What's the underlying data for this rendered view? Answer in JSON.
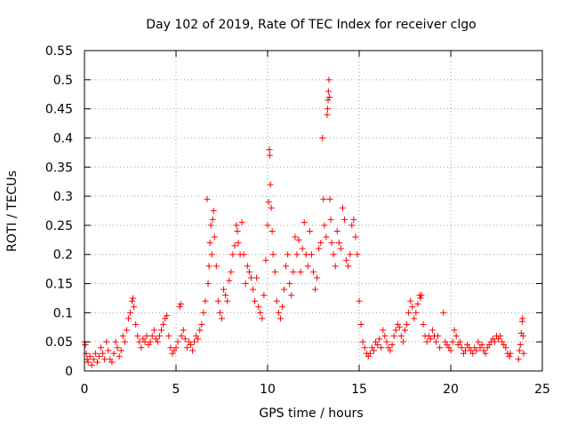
{
  "chart_data": {
    "type": "scatter",
    "title": "Day 102 of 2019, Rate Of TEC Index for receiver clgo",
    "xlabel": "GPS time / hours",
    "ylabel": "ROTI / TECUs",
    "xlim": [
      0,
      25
    ],
    "ylim": [
      0,
      0.55
    ],
    "x_ticks": [
      0,
      5,
      10,
      15,
      20,
      25
    ],
    "y_ticks": [
      0,
      0.05,
      0.1,
      0.15,
      0.2,
      0.25,
      0.3,
      0.35,
      0.4,
      0.45,
      0.5,
      0.55
    ],
    "x_tick_labels": [
      "0",
      "5",
      "10",
      "15",
      "20",
      "25"
    ],
    "y_tick_labels": [
      "0",
      "0.05",
      "0.1",
      "0.15",
      "0.2",
      "0.25",
      "0.3",
      "0.35",
      "0.4",
      "0.45",
      "0.5",
      "0.55"
    ],
    "grid": true,
    "marker": "+",
    "color": "#ff0000",
    "series": [
      {
        "name": "ROTI",
        "points": [
          [
            0.0,
            0.05
          ],
          [
            0.05,
            0.045
          ],
          [
            0.1,
            0.03
          ],
          [
            0.15,
            0.02
          ],
          [
            0.2,
            0.015
          ],
          [
            0.3,
            0.025
          ],
          [
            0.4,
            0.01
          ],
          [
            0.5,
            0.02
          ],
          [
            0.6,
            0.03
          ],
          [
            0.7,
            0.015
          ],
          [
            0.8,
            0.025
          ],
          [
            0.9,
            0.04
          ],
          [
            1.0,
            0.03
          ],
          [
            1.1,
            0.02
          ],
          [
            1.2,
            0.05
          ],
          [
            1.3,
            0.035
          ],
          [
            1.4,
            0.02
          ],
          [
            1.5,
            0.015
          ],
          [
            1.6,
            0.03
          ],
          [
            1.7,
            0.05
          ],
          [
            1.8,
            0.04
          ],
          [
            1.9,
            0.025
          ],
          [
            2.0,
            0.035
          ],
          [
            2.1,
            0.06
          ],
          [
            2.2,
            0.05
          ],
          [
            2.3,
            0.07
          ],
          [
            2.4,
            0.09
          ],
          [
            2.5,
            0.1
          ],
          [
            2.6,
            0.12
          ],
          [
            2.65,
            0.125
          ],
          [
            2.7,
            0.11
          ],
          [
            2.8,
            0.08
          ],
          [
            2.9,
            0.06
          ],
          [
            3.0,
            0.05
          ],
          [
            3.1,
            0.04
          ],
          [
            3.2,
            0.055
          ],
          [
            3.3,
            0.05
          ],
          [
            3.4,
            0.06
          ],
          [
            3.5,
            0.045
          ],
          [
            3.6,
            0.05
          ],
          [
            3.7,
            0.06
          ],
          [
            3.8,
            0.07
          ],
          [
            3.9,
            0.055
          ],
          [
            4.0,
            0.05
          ],
          [
            4.1,
            0.06
          ],
          [
            4.2,
            0.07
          ],
          [
            4.3,
            0.08
          ],
          [
            4.4,
            0.09
          ],
          [
            4.5,
            0.095
          ],
          [
            4.6,
            0.06
          ],
          [
            4.7,
            0.04
          ],
          [
            4.8,
            0.03
          ],
          [
            4.9,
            0.035
          ],
          [
            5.0,
            0.04
          ],
          [
            5.1,
            0.05
          ],
          [
            5.2,
            0.11
          ],
          [
            5.25,
            0.115
          ],
          [
            5.3,
            0.06
          ],
          [
            5.4,
            0.07
          ],
          [
            5.5,
            0.055
          ],
          [
            5.6,
            0.04
          ],
          [
            5.7,
            0.05
          ],
          [
            5.8,
            0.045
          ],
          [
            5.9,
            0.035
          ],
          [
            6.0,
            0.05
          ],
          [
            6.1,
            0.06
          ],
          [
            6.2,
            0.055
          ],
          [
            6.3,
            0.07
          ],
          [
            6.4,
            0.08
          ],
          [
            6.5,
            0.1
          ],
          [
            6.6,
            0.12
          ],
          [
            6.7,
            0.295
          ],
          [
            6.75,
            0.15
          ],
          [
            6.8,
            0.18
          ],
          [
            6.85,
            0.22
          ],
          [
            6.9,
            0.25
          ],
          [
            6.95,
            0.2
          ],
          [
            7.0,
            0.26
          ],
          [
            7.05,
            0.275
          ],
          [
            7.1,
            0.23
          ],
          [
            7.2,
            0.18
          ],
          [
            7.3,
            0.12
          ],
          [
            7.4,
            0.1
          ],
          [
            7.5,
            0.09
          ],
          [
            7.6,
            0.14
          ],
          [
            7.7,
            0.13
          ],
          [
            7.8,
            0.12
          ],
          [
            7.9,
            0.155
          ],
          [
            8.0,
            0.17
          ],
          [
            8.1,
            0.2
          ],
          [
            8.2,
            0.215
          ],
          [
            8.3,
            0.25
          ],
          [
            8.35,
            0.24
          ],
          [
            8.4,
            0.22
          ],
          [
            8.5,
            0.2
          ],
          [
            8.6,
            0.255
          ],
          [
            8.7,
            0.2
          ],
          [
            8.8,
            0.15
          ],
          [
            8.9,
            0.18
          ],
          [
            9.0,
            0.17
          ],
          [
            9.1,
            0.16
          ],
          [
            9.2,
            0.14
          ],
          [
            9.3,
            0.12
          ],
          [
            9.4,
            0.16
          ],
          [
            9.5,
            0.11
          ],
          [
            9.6,
            0.1
          ],
          [
            9.7,
            0.09
          ],
          [
            9.8,
            0.13
          ],
          [
            9.9,
            0.19
          ],
          [
            10.0,
            0.25
          ],
          [
            10.05,
            0.29
          ],
          [
            10.1,
            0.38
          ],
          [
            10.12,
            0.37
          ],
          [
            10.15,
            0.32
          ],
          [
            10.2,
            0.28
          ],
          [
            10.25,
            0.24
          ],
          [
            10.3,
            0.2
          ],
          [
            10.4,
            0.17
          ],
          [
            10.5,
            0.12
          ],
          [
            10.6,
            0.1
          ],
          [
            10.7,
            0.09
          ],
          [
            10.8,
            0.11
          ],
          [
            10.9,
            0.14
          ],
          [
            11.0,
            0.18
          ],
          [
            11.1,
            0.2
          ],
          [
            11.2,
            0.15
          ],
          [
            11.3,
            0.13
          ],
          [
            11.4,
            0.17
          ],
          [
            11.5,
            0.23
          ],
          [
            11.6,
            0.2
          ],
          [
            11.7,
            0.225
          ],
          [
            11.8,
            0.17
          ],
          [
            11.9,
            0.21
          ],
          [
            12.0,
            0.255
          ],
          [
            12.1,
            0.2
          ],
          [
            12.2,
            0.18
          ],
          [
            12.3,
            0.24
          ],
          [
            12.4,
            0.2
          ],
          [
            12.5,
            0.17
          ],
          [
            12.6,
            0.14
          ],
          [
            12.7,
            0.16
          ],
          [
            12.8,
            0.21
          ],
          [
            12.9,
            0.22
          ],
          [
            13.0,
            0.4
          ],
          [
            13.05,
            0.295
          ],
          [
            13.1,
            0.25
          ],
          [
            13.2,
            0.23
          ],
          [
            13.25,
            0.44
          ],
          [
            13.27,
            0.45
          ],
          [
            13.3,
            0.465
          ],
          [
            13.32,
            0.48
          ],
          [
            13.35,
            0.5
          ],
          [
            13.38,
            0.47
          ],
          [
            13.4,
            0.295
          ],
          [
            13.45,
            0.26
          ],
          [
            13.5,
            0.22
          ],
          [
            13.6,
            0.2
          ],
          [
            13.7,
            0.18
          ],
          [
            13.8,
            0.24
          ],
          [
            13.9,
            0.22
          ],
          [
            14.0,
            0.21
          ],
          [
            14.1,
            0.28
          ],
          [
            14.2,
            0.26
          ],
          [
            14.3,
            0.19
          ],
          [
            14.4,
            0.18
          ],
          [
            14.5,
            0.2
          ],
          [
            14.6,
            0.25
          ],
          [
            14.7,
            0.26
          ],
          [
            14.8,
            0.23
          ],
          [
            14.9,
            0.2
          ],
          [
            15.0,
            0.12
          ],
          [
            15.1,
            0.08
          ],
          [
            15.2,
            0.05
          ],
          [
            15.3,
            0.04
          ],
          [
            15.4,
            0.03
          ],
          [
            15.5,
            0.025
          ],
          [
            15.6,
            0.03
          ],
          [
            15.7,
            0.04
          ],
          [
            15.8,
            0.035
          ],
          [
            15.9,
            0.05
          ],
          [
            16.0,
            0.045
          ],
          [
            16.1,
            0.055
          ],
          [
            16.2,
            0.04
          ],
          [
            16.3,
            0.07
          ],
          [
            16.4,
            0.06
          ],
          [
            16.5,
            0.05
          ],
          [
            16.6,
            0.04
          ],
          [
            16.7,
            0.035
          ],
          [
            16.8,
            0.045
          ],
          [
            16.9,
            0.06
          ],
          [
            17.0,
            0.07
          ],
          [
            17.1,
            0.08
          ],
          [
            17.2,
            0.075
          ],
          [
            17.3,
            0.06
          ],
          [
            17.4,
            0.05
          ],
          [
            17.5,
            0.07
          ],
          [
            17.6,
            0.08
          ],
          [
            17.7,
            0.1
          ],
          [
            17.8,
            0.12
          ],
          [
            17.9,
            0.11
          ],
          [
            18.0,
            0.09
          ],
          [
            18.1,
            0.1
          ],
          [
            18.2,
            0.115
          ],
          [
            18.3,
            0.13
          ],
          [
            18.35,
            0.125
          ],
          [
            18.4,
            0.13
          ],
          [
            18.5,
            0.08
          ],
          [
            18.6,
            0.06
          ],
          [
            18.7,
            0.05
          ],
          [
            18.8,
            0.06
          ],
          [
            18.9,
            0.055
          ],
          [
            19.0,
            0.07
          ],
          [
            19.1,
            0.06
          ],
          [
            19.2,
            0.05
          ],
          [
            19.3,
            0.06
          ],
          [
            19.4,
            0.04
          ],
          [
            19.6,
            0.1
          ],
          [
            19.7,
            0.05
          ],
          [
            19.8,
            0.045
          ],
          [
            19.9,
            0.04
          ],
          [
            20.0,
            0.035
          ],
          [
            20.1,
            0.05
          ],
          [
            20.2,
            0.07
          ],
          [
            20.3,
            0.06
          ],
          [
            20.4,
            0.045
          ],
          [
            20.5,
            0.05
          ],
          [
            20.6,
            0.04
          ],
          [
            20.7,
            0.03
          ],
          [
            20.8,
            0.035
          ],
          [
            20.9,
            0.045
          ],
          [
            21.0,
            0.04
          ],
          [
            21.1,
            0.035
          ],
          [
            21.2,
            0.03
          ],
          [
            21.3,
            0.04
          ],
          [
            21.4,
            0.035
          ],
          [
            21.5,
            0.05
          ],
          [
            21.6,
            0.04
          ],
          [
            21.7,
            0.045
          ],
          [
            21.8,
            0.035
          ],
          [
            21.9,
            0.03
          ],
          [
            22.0,
            0.04
          ],
          [
            22.1,
            0.045
          ],
          [
            22.2,
            0.05
          ],
          [
            22.3,
            0.055
          ],
          [
            22.4,
            0.05
          ],
          [
            22.5,
            0.06
          ],
          [
            22.6,
            0.055
          ],
          [
            22.7,
            0.06
          ],
          [
            22.8,
            0.05
          ],
          [
            22.9,
            0.045
          ],
          [
            23.0,
            0.04
          ],
          [
            23.1,
            0.03
          ],
          [
            23.2,
            0.025
          ],
          [
            23.25,
            0.03
          ],
          [
            23.7,
            0.02
          ],
          [
            23.75,
            0.035
          ],
          [
            23.8,
            0.045
          ],
          [
            23.85,
            0.065
          ],
          [
            23.9,
            0.085
          ],
          [
            23.92,
            0.09
          ],
          [
            23.95,
            0.06
          ],
          [
            23.98,
            0.03
          ]
        ]
      }
    ]
  }
}
